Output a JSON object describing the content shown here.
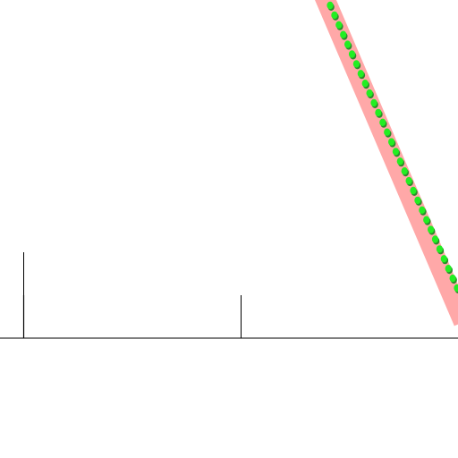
{
  "colors": {
    "background": "#ffffff",
    "axis": "#555555",
    "tick": "#000000",
    "band": "#ff9999",
    "dot": "#22ee22",
    "dot_shadow": "#2a8a2a"
  }
}
